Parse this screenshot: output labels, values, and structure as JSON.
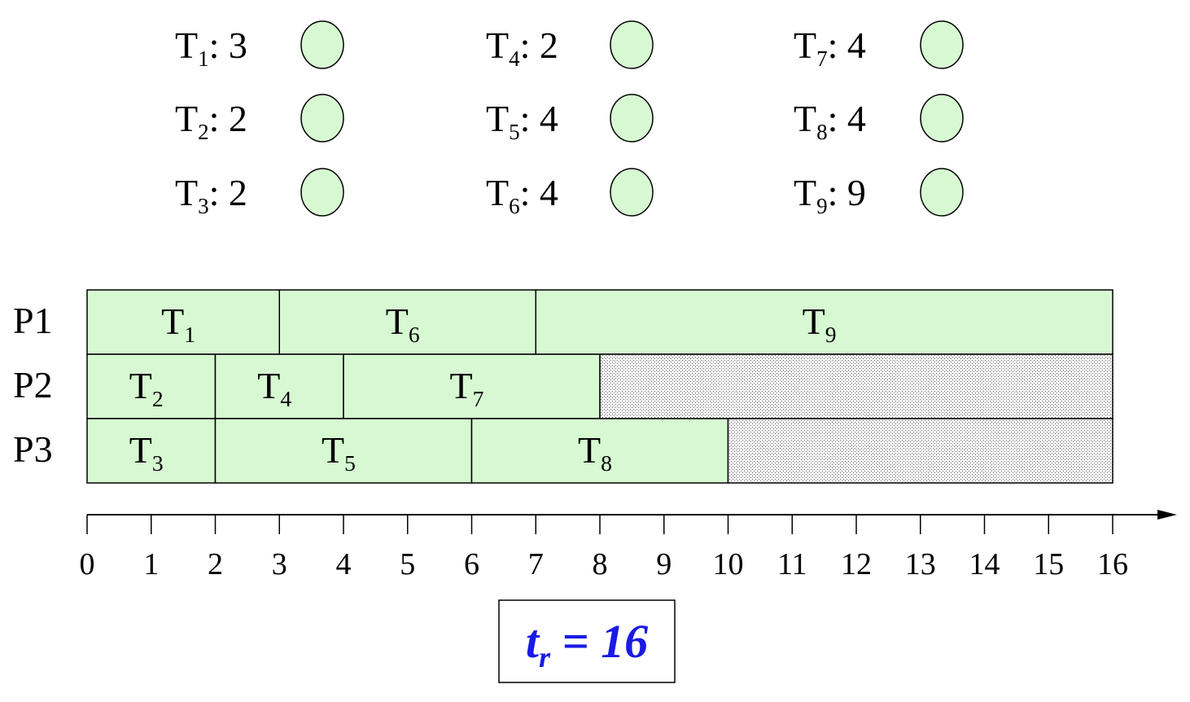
{
  "legend": [
    {
      "task": "T",
      "sub": "1",
      "duration": "3"
    },
    {
      "task": "T",
      "sub": "2",
      "duration": "2"
    },
    {
      "task": "T",
      "sub": "3",
      "duration": "2"
    },
    {
      "task": "T",
      "sub": "4",
      "duration": "2"
    },
    {
      "task": "T",
      "sub": "5",
      "duration": "4"
    },
    {
      "task": "T",
      "sub": "6",
      "duration": "4"
    },
    {
      "task": "T",
      "sub": "7",
      "duration": "4"
    },
    {
      "task": "T",
      "sub": "8",
      "duration": "4"
    },
    {
      "task": "T",
      "sub": "9",
      "duration": "9"
    }
  ],
  "processors": [
    {
      "label": "P1",
      "tasks": [
        {
          "task": "T",
          "sub": "1",
          "start": 0,
          "end": 3
        },
        {
          "task": "T",
          "sub": "6",
          "start": 3,
          "end": 7
        },
        {
          "task": "T",
          "sub": "9",
          "start": 7,
          "end": 16
        }
      ],
      "idle": null
    },
    {
      "label": "P2",
      "tasks": [
        {
          "task": "T",
          "sub": "2",
          "start": 0,
          "end": 2
        },
        {
          "task": "T",
          "sub": "4",
          "start": 2,
          "end": 4
        },
        {
          "task": "T",
          "sub": "7",
          "start": 4,
          "end": 8
        }
      ],
      "idle": {
        "start": 8,
        "end": 16
      }
    },
    {
      "label": "P3",
      "tasks": [
        {
          "task": "T",
          "sub": "3",
          "start": 0,
          "end": 2
        },
        {
          "task": "T",
          "sub": "5",
          "start": 2,
          "end": 6
        },
        {
          "task": "T",
          "sub": "8",
          "start": 6,
          "end": 10
        }
      ],
      "idle": {
        "start": 10,
        "end": 16
      }
    }
  ],
  "axis": {
    "min": 0,
    "max": 16,
    "ticks": [
      "0",
      "1",
      "2",
      "3",
      "4",
      "5",
      "6",
      "7",
      "8",
      "9",
      "10",
      "11",
      "12",
      "13",
      "14",
      "15",
      "16"
    ]
  },
  "result": {
    "var": "t",
    "sub": "r",
    "text": " = 16"
  },
  "colors": {
    "task_fill": "#d7f9d2",
    "stroke": "#000000",
    "idle_dot": "#555555",
    "result_text": "#1a1ae6"
  }
}
